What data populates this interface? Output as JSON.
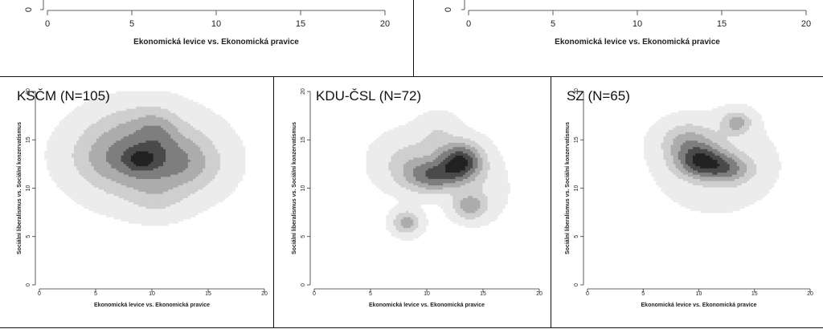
{
  "colors": {
    "level1": "#ececec",
    "level2": "#cfcfcf",
    "level3": "#acacac",
    "level4": "#7e7e7e",
    "level5": "#4a4a4a",
    "level6": "#222222",
    "axis": "#333333",
    "frame": "#111111"
  },
  "chart_data": [
    {
      "panel": "top-left",
      "type": "heatmap",
      "title": "",
      "xlabel": "Ekonomická levice vs. Ekonomická pravice",
      "ylabel": "",
      "xlim": [
        0,
        20
      ],
      "xticks": [
        "0",
        "5",
        "10",
        "15",
        "20"
      ],
      "yticks_visible": [
        "0"
      ],
      "grid": false
    },
    {
      "panel": "top-right",
      "type": "heatmap",
      "title": "",
      "xlabel": "Ekonomická levice vs. Ekonomická pravice",
      "ylabel": "",
      "xlim": [
        0,
        20
      ],
      "xticks": [
        "0",
        "5",
        "10",
        "15",
        "20"
      ],
      "yticks_visible": [
        "0"
      ],
      "grid": false
    },
    {
      "panel": "bottom-left",
      "type": "heatmap",
      "title": "KSČM (N=105)",
      "xlabel": "Ekonomická levice vs. Ekonomická pravice",
      "ylabel": "Sociální liberalismus vs. Sociální konzervatismus",
      "xlim": [
        0,
        20
      ],
      "ylim": [
        0,
        20
      ],
      "xticks": [
        "0",
        "5",
        "10",
        "15",
        "20"
      ],
      "yticks": [
        "0",
        "5",
        "10",
        "15",
        "20"
      ],
      "grid": false,
      "density_bumps": [
        {
          "x": 9.5,
          "y": 13.2,
          "sx": 3.4,
          "sy": 2.7,
          "w": 0.85
        },
        {
          "x": 9.0,
          "y": 13.0,
          "sx": 1.0,
          "sy": 0.8,
          "w": 0.45
        },
        {
          "x": 10.4,
          "y": 16.0,
          "sx": 1.2,
          "sy": 1.6,
          "w": 0.25
        },
        {
          "x": 13.5,
          "y": 12.5,
          "sx": 2.0,
          "sy": 1.8,
          "w": 0.25
        },
        {
          "x": 5.5,
          "y": 13.5,
          "sx": 2.2,
          "sy": 2.0,
          "w": 0.2
        },
        {
          "x": 10.5,
          "y": 8.8,
          "sx": 1.6,
          "sy": 1.2,
          "w": 0.15
        },
        {
          "x": 8.0,
          "y": 17.0,
          "sx": 2.2,
          "sy": 1.4,
          "w": 0.12
        }
      ]
    },
    {
      "panel": "bottom-center",
      "type": "heatmap",
      "title": "KDU-ČSL (N=72)",
      "xlabel": "Ekonomická levice vs. Ekonomická pravice",
      "ylabel": "Sociální liberalismus vs. Sociální konzervatismus",
      "xlim": [
        0,
        20
      ],
      "ylim": [
        0,
        20
      ],
      "xticks": [
        "0",
        "5",
        "10",
        "15",
        "20"
      ],
      "yticks": [
        "0",
        "5",
        "10",
        "15",
        "20"
      ],
      "grid": false,
      "density_bumps": [
        {
          "x": 13.0,
          "y": 12.8,
          "sx": 1.3,
          "sy": 1.3,
          "w": 0.9
        },
        {
          "x": 10.6,
          "y": 11.3,
          "sx": 1.7,
          "sy": 1.1,
          "w": 0.6
        },
        {
          "x": 8.6,
          "y": 12.8,
          "sx": 2.0,
          "sy": 1.8,
          "w": 0.25
        },
        {
          "x": 13.8,
          "y": 8.2,
          "sx": 1.0,
          "sy": 0.9,
          "w": 0.45
        },
        {
          "x": 8.2,
          "y": 6.5,
          "sx": 0.8,
          "sy": 0.8,
          "w": 0.45
        },
        {
          "x": 11.0,
          "y": 15.8,
          "sx": 1.2,
          "sy": 1.3,
          "w": 0.15
        },
        {
          "x": 15.0,
          "y": 10.0,
          "sx": 1.5,
          "sy": 2.0,
          "w": 0.1
        }
      ]
    },
    {
      "panel": "bottom-right",
      "type": "heatmap",
      "title": "SZ (N=65)",
      "xlabel": "Ekonomická levice vs. Ekonomická pravice",
      "ylabel": "Sociální liberalismus vs. Sociální konzervatismus",
      "xlim": [
        0,
        20
      ],
      "ylim": [
        0,
        20
      ],
      "xticks": [
        "0",
        "5",
        "10",
        "15",
        "20"
      ],
      "yticks": [
        "0",
        "5",
        "10",
        "15",
        "20"
      ],
      "grid": false,
      "density_bumps": [
        {
          "x": 10.2,
          "y": 12.8,
          "sx": 1.5,
          "sy": 1.1,
          "w": 0.9
        },
        {
          "x": 12.6,
          "y": 12.0,
          "sx": 1.5,
          "sy": 1.0,
          "w": 0.55
        },
        {
          "x": 9.0,
          "y": 14.8,
          "sx": 1.6,
          "sy": 1.3,
          "w": 0.45
        },
        {
          "x": 13.4,
          "y": 16.8,
          "sx": 0.9,
          "sy": 0.8,
          "w": 0.5
        },
        {
          "x": 11.5,
          "y": 12.5,
          "sx": 3.2,
          "sy": 2.9,
          "w": 0.18
        }
      ]
    }
  ]
}
